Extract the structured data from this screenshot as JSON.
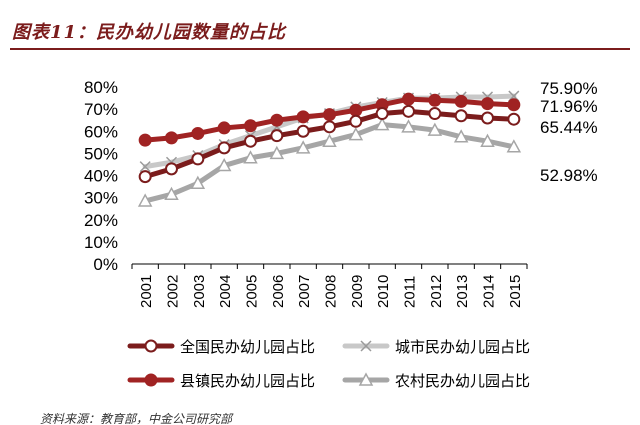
{
  "header": {
    "title": "图表11：民办幼儿园数量的占比"
  },
  "footer": {
    "source": "资料来源：教育部，中金公司研究部"
  },
  "colors": {
    "national": "#7b1c1c",
    "city": "#c8c8c8",
    "county": "#a02323",
    "rural": "#a6a6a6"
  },
  "chart_data": {
    "type": "line",
    "title": "",
    "xlabel": "",
    "ylabel": "",
    "ylim": [
      0,
      80
    ],
    "y_ticks": [
      "0%",
      "10%",
      "20%",
      "30%",
      "40%",
      "50%",
      "60%",
      "70%",
      "80%"
    ],
    "categories": [
      "2001",
      "2002",
      "2003",
      "2004",
      "2005",
      "2006",
      "2007",
      "2008",
      "2009",
      "2010",
      "2011",
      "2012",
      "2013",
      "2014",
      "2015"
    ],
    "legend_position": "bottom",
    "series": [
      {
        "key": "national",
        "name": "全国民办幼儿园占比",
        "marker": "open-circle",
        "values": [
          39.5,
          43,
          47.5,
          52.5,
          55.5,
          58,
          60,
          62,
          64.5,
          68,
          69,
          68,
          67,
          66,
          65.44
        ]
      },
      {
        "key": "city",
        "name": "城市民办幼儿园占比",
        "marker": "x",
        "values": [
          44,
          46,
          49,
          54,
          58,
          62,
          66,
          68,
          71,
          73,
          75,
          75,
          75.5,
          75.5,
          75.9
        ]
      },
      {
        "key": "county",
        "name": "县镇民办幼儿园占比",
        "marker": "filled-circle",
        "values": [
          56,
          57,
          59,
          61.5,
          62.5,
          65,
          66.5,
          67.5,
          69.5,
          72,
          74.5,
          74,
          73.5,
          72.5,
          71.96
        ]
      },
      {
        "key": "rural",
        "name": "农村民办幼儿园占比",
        "marker": "triangle",
        "values": [
          28.5,
          31.5,
          36.5,
          44.5,
          48,
          50,
          52.5,
          55.5,
          58.5,
          63,
          62,
          60.5,
          57.5,
          55.5,
          52.98
        ]
      }
    ],
    "end_labels": [
      {
        "key": "city",
        "text": "75.90%"
      },
      {
        "key": "county",
        "text": "71.96%"
      },
      {
        "key": "national",
        "text": "65.44%"
      },
      {
        "key": "rural",
        "text": "52.98%"
      }
    ]
  }
}
